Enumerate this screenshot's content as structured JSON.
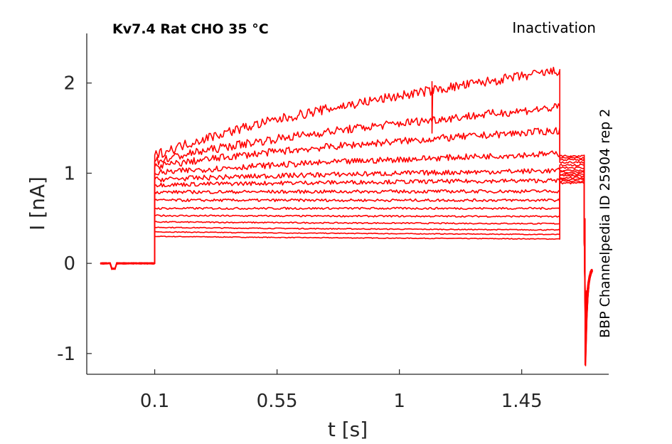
{
  "chart_data": {
    "type": "line",
    "title": "Kv7.4  Rat  CHO  35 °C",
    "protocol": "Inactivation",
    "side_label": "BBP Channelpedia ID 25904 rep 2",
    "xlabel": "t [s]",
    "ylabel": "I [nA]",
    "xlim": [
      -0.15,
      1.77
    ],
    "ylim": [
      -1.23,
      2.55
    ],
    "xticks": [
      0.1,
      0.55,
      1,
      1.45
    ],
    "xtick_labels": [
      "0.1",
      "0.55",
      "1",
      "1.45"
    ],
    "yticks": [
      -1,
      0,
      1,
      2
    ],
    "ytick_labels": [
      "-1",
      "0",
      "1",
      "2"
    ],
    "grid": false,
    "line_color": "#ff0000",
    "step_on": 0.1,
    "step_off": 1.59,
    "tail_end": 1.71,
    "series": [
      {
        "values": {
          "start": 0.3,
          "end": 0.27,
          "tail": 0.89
        }
      },
      {
        "values": {
          "start": 0.35,
          "end": 0.32,
          "tail": 0.91
        }
      },
      {
        "values": {
          "start": 0.4,
          "end": 0.37,
          "tail": 0.93
        }
      },
      {
        "values": {
          "start": 0.46,
          "end": 0.44,
          "tail": 0.95
        }
      },
      {
        "values": {
          "start": 0.53,
          "end": 0.52,
          "tail": 0.97
        }
      },
      {
        "values": {
          "start": 0.61,
          "end": 0.61,
          "tail": 0.99
        }
      },
      {
        "values": {
          "start": 0.7,
          "end": 0.7,
          "tail": 1.01
        }
      },
      {
        "values": {
          "start": 0.79,
          "end": 0.8,
          "tail": 1.03
        }
      },
      {
        "values": {
          "start": 0.87,
          "end": 0.92,
          "tail": 1.06
        }
      },
      {
        "values": {
          "start": 0.93,
          "end": 1.03,
          "tail": 1.09
        }
      },
      {
        "values": {
          "start": 1.0,
          "end": 1.22,
          "tail": 1.12
        }
      },
      {
        "values": {
          "start": 1.07,
          "end": 1.48,
          "tail": 1.15
        }
      },
      {
        "values": {
          "start": 1.13,
          "end": 1.74,
          "tail": 1.17
        }
      },
      {
        "values": {
          "start": 1.2,
          "end": 2.15,
          "tail": 1.19
        }
      }
    ]
  }
}
